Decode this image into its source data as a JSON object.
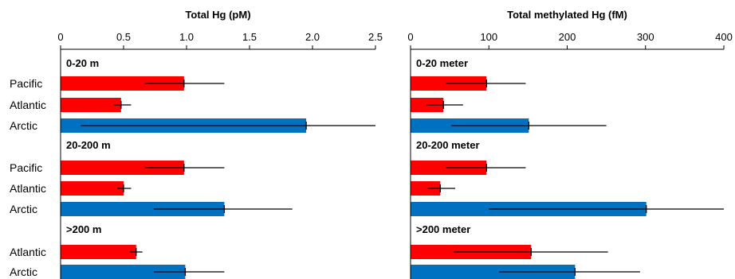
{
  "chart_data": [
    {
      "type": "bar",
      "orientation": "horizontal",
      "title": "Total Hg (pM)",
      "xlim": [
        0,
        2.5
      ],
      "ticks": [
        0,
        0.5,
        1,
        1.5,
        2,
        2.5
      ],
      "tick_labels": [
        "0",
        "0.5",
        "1.0",
        "1.5",
        "2.0",
        "2.5"
      ],
      "colors": {
        "Pacific": "#ff0000",
        "Atlantic": "#ff0000",
        "Arctic": "#0070c0"
      },
      "groups": [
        {
          "label": "0-20 m",
          "bars": [
            {
              "category": "Pacific",
              "value": 0.98,
              "err_low": 0.67,
              "err_high": 1.3
            },
            {
              "category": "Atlantic",
              "value": 0.48,
              "err_low": 0.42,
              "err_high": 0.56
            },
            {
              "category": "Arctic",
              "value": 1.95,
              "err_low": 0.16,
              "err_high": 2.5
            }
          ]
        },
        {
          "label": "20-200 m",
          "bars": [
            {
              "category": "Pacific",
              "value": 0.98,
              "err_low": 0.67,
              "err_high": 1.3
            },
            {
              "category": "Atlantic",
              "value": 0.5,
              "err_low": 0.45,
              "err_high": 0.56
            },
            {
              "category": "Arctic",
              "value": 1.3,
              "err_low": 0.74,
              "err_high": 1.84
            }
          ]
        },
        {
          "label": ">200 m",
          "bars": [
            {
              "category": "Atlantic",
              "value": 0.6,
              "err_low": 0.55,
              "err_high": 0.65
            },
            {
              "category": "Arctic",
              "value": 0.99,
              "err_low": 0.74,
              "err_high": 1.3
            }
          ]
        }
      ]
    },
    {
      "type": "bar",
      "orientation": "horizontal",
      "title": "Total methylated Hg (fM)",
      "xlim": [
        0,
        400
      ],
      "ticks": [
        0,
        100,
        200,
        300,
        400
      ],
      "tick_labels": [
        "0",
        "100",
        "200",
        "300",
        "400"
      ],
      "colors": {
        "Pacific": "#ff0000",
        "Atlantic": "#ff0000",
        "Arctic": "#0070c0"
      },
      "groups": [
        {
          "label": "0-20 meter",
          "bars": [
            {
              "category": "Pacific",
              "value": 97,
              "err_low": 45,
              "err_high": 147
            },
            {
              "category": "Atlantic",
              "value": 42,
              "err_low": 20,
              "err_high": 67
            },
            {
              "category": "Arctic",
              "value": 151,
              "err_low": 52,
              "err_high": 250
            }
          ]
        },
        {
          "label": "20-200 meter",
          "bars": [
            {
              "category": "Pacific",
              "value": 97,
              "err_low": 45,
              "err_high": 147
            },
            {
              "category": "Atlantic",
              "value": 38,
              "err_low": 22,
              "err_high": 57
            },
            {
              "category": "Arctic",
              "value": 301,
              "err_low": 100,
              "err_high": 400
            }
          ]
        },
        {
          "label": ">200 meter",
          "bars": [
            {
              "category": "Atlantic",
              "value": 154,
              "err_low": 55,
              "err_high": 252
            },
            {
              "category": "Arctic",
              "value": 210,
              "err_low": 113,
              "err_high": 293
            }
          ]
        }
      ]
    }
  ]
}
